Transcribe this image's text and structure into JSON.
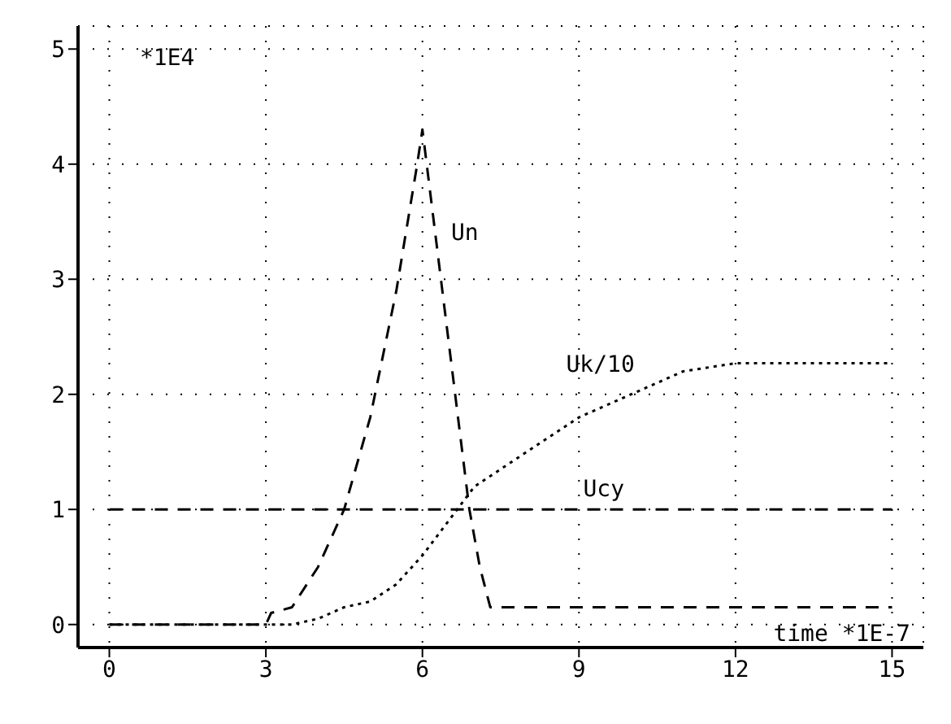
{
  "chart_data": {
    "type": "line",
    "xlim": [
      -0.6,
      15.6
    ],
    "xticks": [
      0,
      3,
      6,
      9,
      12,
      15
    ],
    "ylim": [
      -0.2,
      5.2
    ],
    "yticks": [
      0,
      1,
      2,
      3,
      4,
      5
    ],
    "grid": true,
    "legend": false,
    "marker": "none",
    "annotations": [
      "*1E4",
      "time *1E-7"
    ],
    "series": [
      {
        "name": "Un",
        "color": "#000000",
        "line_style": "dashed",
        "x": [
          0,
          3,
          3.1,
          3.5,
          4,
          4.5,
          5,
          5.5,
          5.9,
          6.0,
          6.3,
          6.6,
          6.9,
          7.1,
          7.3,
          15
        ],
        "values": [
          0,
          0,
          0.1,
          0.15,
          0.5,
          1,
          1.8,
          2.9,
          4.0,
          4.3,
          3.2,
          2.1,
          1.0,
          0.5,
          0.15,
          0.15
        ]
      },
      {
        "name": "Uk/10",
        "color": "#000000",
        "line_style": "dotted",
        "x": [
          0,
          3.5,
          4,
          4.5,
          5,
          5.5,
          6,
          6.5,
          7,
          8,
          9,
          10,
          11,
          12,
          15
        ],
        "values": [
          0,
          0,
          0.05,
          0.15,
          0.2,
          0.35,
          0.6,
          0.9,
          1.2,
          1.5,
          1.8,
          2.0,
          2.2,
          2.27,
          2.27
        ]
      },
      {
        "name": "Ucy",
        "color": "#000000",
        "line_style": "dashed",
        "x": [
          0,
          15
        ],
        "values": [
          1,
          1
        ]
      }
    ]
  }
}
